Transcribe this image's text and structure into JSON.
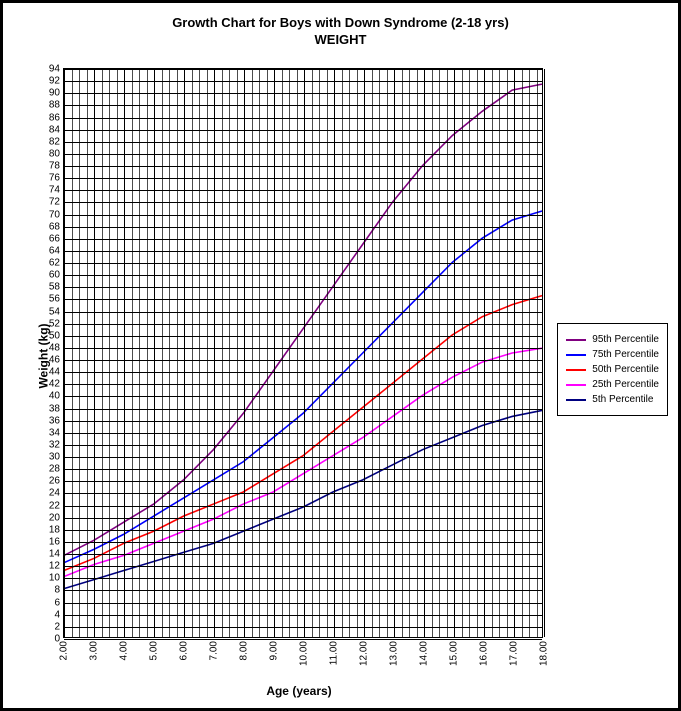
{
  "chart": {
    "type": "line",
    "title_line1": "Growth Chart for Boys with Down Syndrome (2-18 yrs)",
    "title_line2": "WEIGHT",
    "title_fontsize": 13,
    "xlabel": "Age (years)",
    "ylabel": "Weight (kg)",
    "label_fontsize": 12,
    "tick_fontsize": 10,
    "background_color": "#ffffff",
    "grid_color": "#000000",
    "border_color": "#000000",
    "xlim": [
      2,
      18
    ],
    "ylim": [
      0,
      94
    ],
    "xtick_step_major": 1,
    "xtick_labels": [
      "2.00",
      "3.00",
      "4.00",
      "5.00",
      "6.00",
      "7.00",
      "8.00",
      "9.00",
      "10.00",
      "11.00",
      "12.00",
      "13.00",
      "14.00",
      "15.00",
      "16.00",
      "17.00",
      "18.00"
    ],
    "x_minor_per_major": 4,
    "ytick_step": 2,
    "line_width": 1.6,
    "series": [
      {
        "name": "95th Percentile",
        "color": "#800080",
        "x": [
          2,
          3,
          4,
          5,
          6,
          7,
          8,
          9,
          10,
          11,
          12,
          13,
          14,
          15,
          16,
          17,
          18
        ],
        "y": [
          13.5,
          16,
          19,
          22,
          26,
          31,
          37,
          44,
          51,
          58,
          65,
          72,
          78,
          83,
          87,
          90.5,
          91.5
        ]
      },
      {
        "name": "75th Percentile",
        "color": "#0000ff",
        "x": [
          2,
          3,
          4,
          5,
          6,
          7,
          8,
          9,
          10,
          11,
          12,
          13,
          14,
          15,
          16,
          17,
          18
        ],
        "y": [
          12.3,
          14.5,
          17,
          20,
          23,
          26,
          29,
          33,
          37,
          42,
          47,
          52,
          57,
          62,
          66,
          69,
          70.5
        ]
      },
      {
        "name": "50th Percentile",
        "color": "#ff0000",
        "x": [
          2,
          3,
          4,
          5,
          6,
          7,
          8,
          9,
          10,
          11,
          12,
          13,
          14,
          15,
          16,
          17,
          18
        ],
        "y": [
          11,
          13,
          15.5,
          17.5,
          20,
          22,
          24,
          27,
          30,
          34,
          38,
          42,
          46,
          50,
          53,
          55,
          56.5
        ]
      },
      {
        "name": "25th Percentile",
        "color": "#ff00ff",
        "x": [
          2,
          3,
          4,
          5,
          6,
          7,
          8,
          9,
          10,
          11,
          12,
          13,
          14,
          15,
          16,
          17,
          18
        ],
        "y": [
          10,
          12,
          13.5,
          15.5,
          17.5,
          19.5,
          22,
          24,
          27,
          30,
          33,
          36.5,
          40,
          43,
          45.5,
          47,
          47.8
        ]
      },
      {
        "name": "5th Percentile",
        "color": "#000080",
        "x": [
          2,
          3,
          4,
          5,
          6,
          7,
          8,
          9,
          10,
          11,
          12,
          13,
          14,
          15,
          16,
          17,
          18
        ],
        "y": [
          8,
          9.5,
          11,
          12.5,
          14,
          15.5,
          17.5,
          19.5,
          21.5,
          24,
          26,
          28.5,
          31,
          33,
          35,
          36.5,
          37.5
        ]
      }
    ],
    "legend": {
      "position": "right",
      "border_color": "#000000",
      "fontsize": 10
    }
  }
}
